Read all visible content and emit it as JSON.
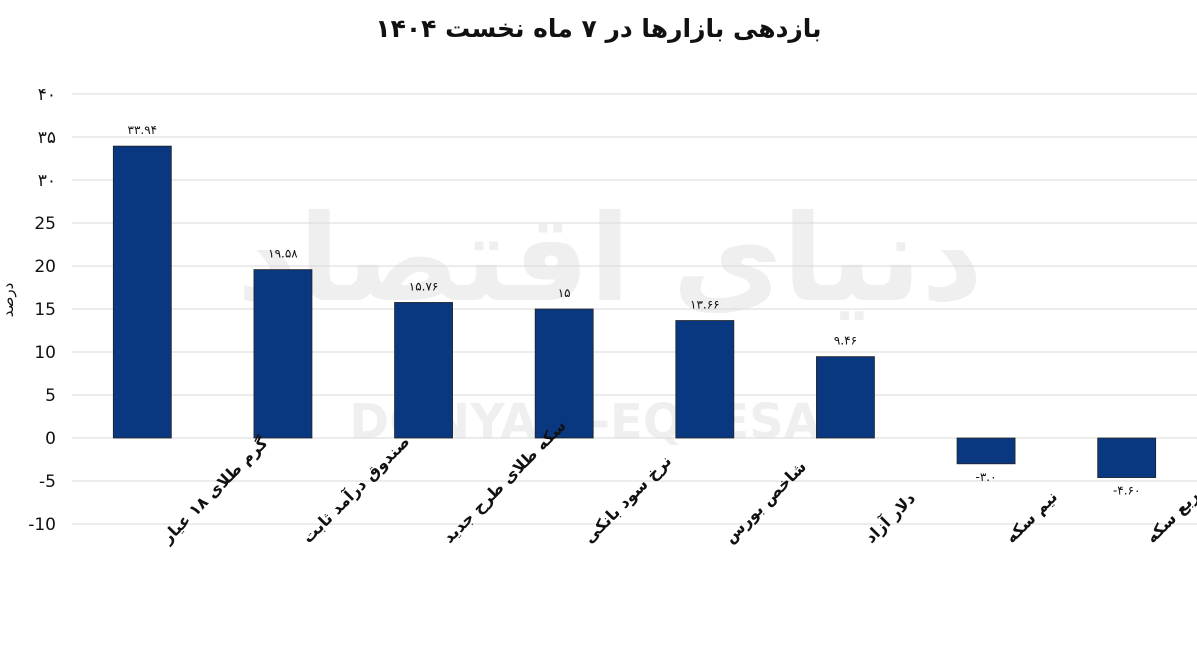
{
  "chart_data": {
    "type": "bar",
    "title": "بازدهی بازارها در ۷ ماه نخست ۱۴۰۴",
    "ylabel": "درصد",
    "xlabel": "",
    "ylim": [
      -10,
      40
    ],
    "yticks": [
      40,
      35,
      30,
      25,
      20,
      15,
      10,
      5,
      0,
      -5,
      -10
    ],
    "ytick_labels": [
      "۴۰",
      "۳۵",
      "۳۰",
      "25",
      "20",
      "15",
      "10",
      "5",
      "0",
      "-5",
      "-10"
    ],
    "grid": true,
    "categories": [
      "گرم طلای ۱۸ عیار",
      "صندوق درآمد ثابت",
      "سکه طلای طرح جدید",
      "نرخ سود بانکی",
      "شاخص بورس",
      "دلار آزاد",
      "نیم سکه",
      "ربع سکه"
    ],
    "values": [
      33.94,
      19.58,
      15.76,
      15,
      13.66,
      9.46,
      -3.0,
      -4.6
    ],
    "data_labels": [
      "۳۳.۹۴",
      "۱۹.۵۸",
      "۱۵.۷۶",
      "۱۵",
      "۱۳.۶۶",
      "۹.۴۶",
      "-۳.۰",
      "-۴.۶۰"
    ],
    "bar_color": "#0a3880"
  },
  "watermark": {
    "persian": "دنیای اقتصاد",
    "latin": "DONYA-E-EQTESAD"
  }
}
